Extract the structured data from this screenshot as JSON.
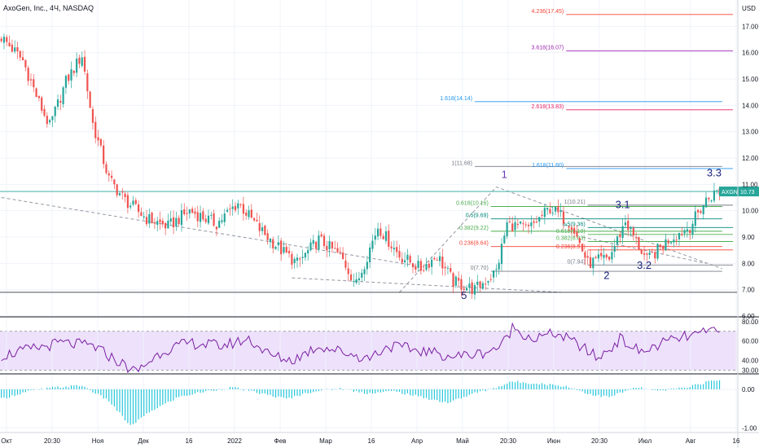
{
  "header": {
    "title": "AxoGen, Inc., 4Ч, NASDAQ"
  },
  "currency": "USD",
  "colors": {
    "up": "#26a69a",
    "down": "#ef5350",
    "rsi": "#7b1fa2",
    "rsi_band": "#ede1fb",
    "grid": "#f0f3fa",
    "fib_blue": "#2196f3",
    "fib_red": "#e91e63",
    "fib_purple": "#9c27b0",
    "fib_gray": "#787b86",
    "fib_green": "#4caf50",
    "fib_teal": "#00897b",
    "wave": "#1a237e",
    "badge": "#26a69a"
  },
  "current_price": {
    "label": "AXGN",
    "value": "10.73"
  },
  "chart_data": [
    {
      "type": "candlestick",
      "ylim": [
        6.0,
        18.0
      ],
      "yticks": [
        "6.00",
        "7.00",
        "8.00",
        "9.00",
        "10.00",
        "11.00",
        "12.00",
        "13.00",
        "14.00",
        "15.00",
        "16.00",
        "17.00"
      ],
      "xticks": [
        "Окт",
        "20:30",
        "Ноя",
        "Дек",
        "16",
        "2022",
        "Фев",
        "Мар",
        "16",
        "Апр",
        "Май",
        "20:30",
        "Июн",
        "20:30",
        "Июл",
        "Авг",
        "16"
      ],
      "anchors": [
        [
          0,
          16.6
        ],
        [
          8,
          15.7
        ],
        [
          14,
          14.1
        ],
        [
          18,
          13.2
        ],
        [
          24,
          14.9
        ],
        [
          30,
          15.9
        ],
        [
          34,
          13.3
        ],
        [
          40,
          11.2
        ],
        [
          46,
          10.4
        ],
        [
          54,
          9.7
        ],
        [
          62,
          9.4
        ],
        [
          70,
          10.0
        ],
        [
          80,
          9.5
        ],
        [
          88,
          10.3
        ],
        [
          96,
          9.3
        ],
        [
          104,
          8.5
        ],
        [
          110,
          8.0
        ],
        [
          118,
          8.9
        ],
        [
          126,
          8.3
        ],
        [
          132,
          7.2
        ],
        [
          140,
          9.4
        ],
        [
          148,
          8.3
        ],
        [
          156,
          7.8
        ],
        [
          162,
          8.3
        ],
        [
          168,
          7.3
        ],
        [
          176,
          7.0
        ],
        [
          184,
          7.7
        ],
        [
          188,
          9.5
        ],
        [
          196,
          9.3
        ],
        [
          204,
          10.1
        ],
        [
          212,
          9.5
        ],
        [
          218,
          8.0
        ],
        [
          226,
          8.2
        ],
        [
          232,
          9.6
        ],
        [
          240,
          8.1
        ],
        [
          248,
          8.9
        ],
        [
          256,
          9.4
        ],
        [
          262,
          10.4
        ],
        [
          266,
          10.73
        ]
      ],
      "annotations": [
        {
          "text": "1",
          "x": 187,
          "y": 11.25,
          "color": "#673ab7"
        },
        {
          "text": "2",
          "x": 225,
          "y": 7.4,
          "color": "#1a237e"
        },
        {
          "text": "3.1",
          "x": 231,
          "y": 10.1,
          "color": "#1a237e"
        },
        {
          "text": "3.2",
          "x": 239,
          "y": 7.8,
          "color": "#1a237e"
        },
        {
          "text": "3.3",
          "x": 265,
          "y": 11.3,
          "color": "#1a237e"
        },
        {
          "text": "5",
          "x": 172,
          "y": 6.65,
          "color": "#1a237e"
        }
      ],
      "fib_levels": [
        {
          "text": "4.236(17.45)",
          "value": 17.45,
          "color": "#f44336",
          "x0": 210,
          "x1": 272
        },
        {
          "text": "3.618(16.07)",
          "value": 16.07,
          "color": "#9c27b0",
          "x0": 210,
          "x1": 272
        },
        {
          "text": "1.618(14.14)",
          "value": 14.14,
          "color": "#2196f3",
          "x0": 176,
          "x1": 268
        },
        {
          "text": "2.618(13.83)",
          "value": 13.83,
          "color": "#e91e63",
          "x0": 210,
          "x1": 272
        },
        {
          "text": "1(11.68)",
          "value": 11.68,
          "color": "#787b86",
          "x0": 176,
          "x1": 268
        },
        {
          "text": "1.618(11.60)",
          "value": 11.6,
          "color": "#2196f3",
          "x0": 210,
          "x1": 272
        },
        {
          "text": "1(10.21)",
          "value": 10.21,
          "color": "#787b86",
          "x0": 218,
          "x1": 272
        },
        {
          "text": "0.618(10.16)",
          "value": 10.16,
          "color": "#4caf50",
          "x0": 182,
          "x1": 268
        },
        {
          "text": "0.5(9.69)",
          "value": 9.69,
          "color": "#00897b",
          "x0": 182,
          "x1": 268
        },
        {
          "text": "0.382(9.22)",
          "value": 9.22,
          "color": "#4caf50",
          "x0": 182,
          "x1": 268
        },
        {
          "text": "0.236(8.64)",
          "value": 8.64,
          "color": "#f44336",
          "x0": 182,
          "x1": 268
        },
        {
          "text": "0(7.70)",
          "value": 7.7,
          "color": "#787b86",
          "x0": 182,
          "x1": 268
        },
        {
          "text": "0.5(9.36)",
          "value": 9.36,
          "color": "#00897b",
          "x0": 218,
          "x1": 272
        },
        {
          "text": "0.618(9.10)",
          "value": 9.1,
          "color": "#4caf50",
          "x0": 218,
          "x1": 272
        },
        {
          "text": "0.382(8.83)",
          "value": 8.83,
          "color": "#4caf50",
          "x0": 218,
          "x1": 272
        },
        {
          "text": "0.236(8.51)",
          "value": 8.51,
          "color": "#f44336",
          "x0": 218,
          "x1": 272
        },
        {
          "text": "0(7.94)",
          "value": 7.94,
          "color": "#787b86",
          "x0": 218,
          "x1": 272
        }
      ],
      "horizontal_lines": [
        {
          "value": 6.9,
          "color": "#131722"
        },
        {
          "value": 10.73,
          "color": "#26a69a"
        }
      ]
    },
    {
      "type": "line",
      "name": "RSI",
      "ylim": [
        27,
        84
      ],
      "yticks": [
        "30.00",
        "40.00",
        "60.00",
        "80.00"
      ],
      "band": [
        30,
        70
      ],
      "anchors": [
        [
          0,
          45
        ],
        [
          12,
          52
        ],
        [
          22,
          58
        ],
        [
          34,
          55
        ],
        [
          44,
          38
        ],
        [
          50,
          28
        ],
        [
          60,
          50
        ],
        [
          70,
          58
        ],
        [
          82,
          55
        ],
        [
          92,
          62
        ],
        [
          100,
          45
        ],
        [
          108,
          40
        ],
        [
          118,
          55
        ],
        [
          128,
          48
        ],
        [
          136,
          42
        ],
        [
          144,
          55
        ],
        [
          156,
          50
        ],
        [
          168,
          44
        ],
        [
          178,
          47
        ],
        [
          186,
          55
        ],
        [
          190,
          74
        ],
        [
          198,
          62
        ],
        [
          206,
          68
        ],
        [
          214,
          57
        ],
        [
          222,
          42
        ],
        [
          230,
          62
        ],
        [
          238,
          48
        ],
        [
          246,
          58
        ],
        [
          254,
          64
        ],
        [
          262,
          68
        ],
        [
          266,
          75
        ]
      ]
    },
    {
      "type": "bar",
      "name": "Histogram",
      "ylim": [
        -1.1,
        0.38
      ],
      "yticks": [
        "0.00",
        "-1.00"
      ],
      "anchors": [
        [
          0,
          -0.25
        ],
        [
          10,
          -0.05
        ],
        [
          20,
          0.05
        ],
        [
          30,
          0.1
        ],
        [
          40,
          -0.3
        ],
        [
          48,
          -0.95
        ],
        [
          56,
          -0.55
        ],
        [
          66,
          -0.2
        ],
        [
          76,
          -0.05
        ],
        [
          86,
          0.05
        ],
        [
          96,
          -0.1
        ],
        [
          106,
          -0.25
        ],
        [
          116,
          -0.05
        ],
        [
          126,
          0.02
        ],
        [
          136,
          -0.1
        ],
        [
          146,
          -0.05
        ],
        [
          156,
          -0.2
        ],
        [
          166,
          -0.35
        ],
        [
          176,
          -0.1
        ],
        [
          184,
          0.05
        ],
        [
          190,
          0.2
        ],
        [
          200,
          0.15
        ],
        [
          210,
          0.08
        ],
        [
          220,
          -0.15
        ],
        [
          226,
          -0.2
        ],
        [
          236,
          0.05
        ],
        [
          244,
          -0.05
        ],
        [
          254,
          0.05
        ],
        [
          262,
          0.18
        ],
        [
          266,
          0.25
        ]
      ]
    }
  ]
}
